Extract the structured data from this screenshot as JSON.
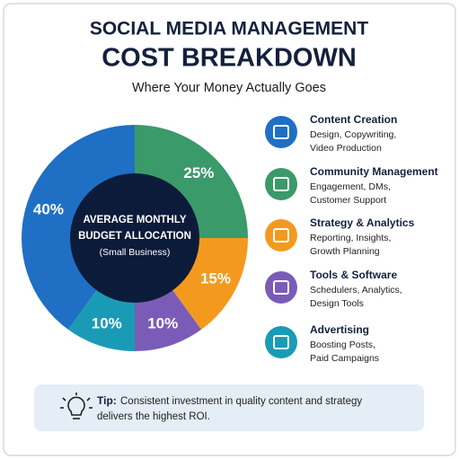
{
  "chart_data": {
    "type": "pie",
    "title": [
      "SOCIAL MEDIA MANAGEMENT",
      "COST BREAKDOWN"
    ],
    "subtitle": "Where Your Money Actually Goes",
    "center_label": [
      "AVERAGE MONTHLY",
      "BUDGET ALLOCATION"
    ],
    "center_note": "(Small Business)",
    "categories": [
      "Content Creation",
      "Community Management",
      "Strategy & Analytics",
      "Tools & Software",
      "Advertising"
    ],
    "descriptions": [
      [
        "Design, Copywriting,",
        "Video Production"
      ],
      [
        "Engagement, DMs,",
        "Customer Support"
      ],
      [
        "Reporting, Insights,",
        "Growth Planning"
      ],
      [
        "Schedulers, Analytics,",
        "Design Tools"
      ],
      [
        "Boosting Posts,",
        "Paid Campaigns"
      ]
    ],
    "values": [
      40,
      25,
      15,
      10,
      10
    ],
    "value_labels": [
      "40%",
      "25%",
      "15%",
      "10%",
      "10%"
    ],
    "colors": [
      "#1f6fc5",
      "#3a9a6a",
      "#f39a1e",
      "#7a5cb8",
      "#1a9bb5"
    ],
    "tip": {
      "label": "Tip:",
      "text": [
        "Consistent investment in quality content and strategy",
        "delivers the highest ROI."
      ]
    }
  }
}
